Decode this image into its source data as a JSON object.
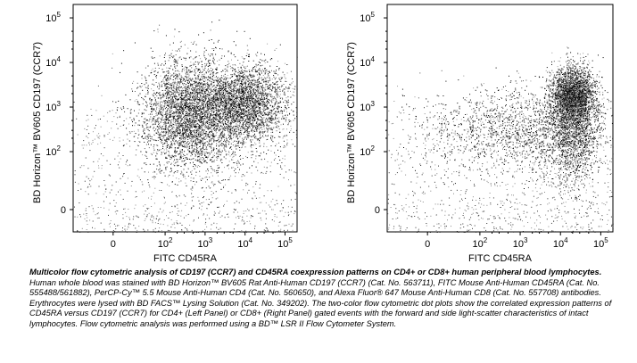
{
  "chart_data": [
    {
      "type": "scatter",
      "panel": "left",
      "xlabel": "FITC CD45RA",
      "ylabel": "BD Horizon™ BV605 CD197 (CCR7)",
      "x_ticks": [
        "0",
        "10",
        "10",
        "10",
        "10"
      ],
      "x_tick_exponents": [
        "",
        "2",
        "3",
        "4",
        "5"
      ],
      "y_ticks": [
        "0",
        "10",
        "10",
        "10",
        "10"
      ],
      "y_tick_exponents": [
        "",
        "2",
        "3",
        "4",
        "5"
      ],
      "x_scale": "biexponential",
      "y_scale": "biexponential",
      "xlim": [
        -100,
        200000
      ],
      "ylim": [
        -50,
        200000
      ],
      "grid": false,
      "populations": [
        {
          "name": "",
          "x_center": 350,
          "y_center": 700,
          "x_spread": 0.22,
          "y_spread": 0.28,
          "density": "high"
        },
        {
          "name": "",
          "x_center": 9000,
          "y_center": 1300,
          "x_spread": 0.25,
          "y_spread": 0.18,
          "density": "high"
        },
        {
          "name": "",
          "x_center": 1500,
          "y_center": 700,
          "x_spread": 0.45,
          "y_spread": 0.3,
          "density": "medium"
        }
      ]
    },
    {
      "type": "scatter",
      "panel": "right",
      "xlabel": "FITC CD45RA",
      "ylabel": "BD Horizon™ BV605 CD197 (CCR7)",
      "x_ticks": [
        "0",
        "10",
        "10",
        "10",
        "10"
      ],
      "x_tick_exponents": [
        "",
        "2",
        "3",
        "4",
        "5"
      ],
      "y_ticks": [
        "0",
        "10",
        "10",
        "10",
        "10"
      ],
      "y_tick_exponents": [
        "",
        "2",
        "3",
        "4",
        "5"
      ],
      "x_scale": "biexponential",
      "y_scale": "biexponential",
      "xlim": [
        -100,
        200000
      ],
      "ylim": [
        -50,
        200000
      ],
      "grid": false,
      "populations": [
        {
          "name": "",
          "x_center": 20000,
          "y_center": 1800,
          "x_spread": 0.12,
          "y_spread": 0.14,
          "density": "high"
        },
        {
          "name": "",
          "x_center": 1200,
          "y_center": 300,
          "x_spread": 0.55,
          "y_spread": 0.22,
          "density": "medium"
        },
        {
          "name": "",
          "x_center": 20000,
          "y_center": 300,
          "x_spread": 0.15,
          "y_spread": 0.3,
          "density": "medium"
        }
      ]
    }
  ],
  "caption": {
    "title": "Multicolor flow cytometric analysis of CD197 (CCR7) and CD45RA coexpression patterns on CD4+ or CD8+ human peripheral blood lymphocytes.",
    "body": " Human whole blood was stained with BD Horizon™ BV605 Rat Anti-Human CD197 (CCR7) (Cat. No. 563711), FITC Mouse Anti-Human CD45RA (Cat. No. 555488/561882), PerCP-Cy™ 5.5 Mouse Anti-Human CD4 (Cat. No. 560650), and Alexa Fluor® 647 Mouse Anti-Human CD8 (Cat. No. 557708) antibodies. Erythrocytes were lysed with BD FACS™ Lysing Solution (Cat. No. 349202). The two-color flow cytometric dot plots show the correlated expression patterns of CD45RA versus CD197 (CCR7) for CD4+ (Left Panel) or CD8+ (Right Panel) gated events with the forward and side light-scatter characteristics of intact lymphocytes. Flow cytometric analysis was performed using a BD™ LSR II Flow Cytometer System."
  }
}
